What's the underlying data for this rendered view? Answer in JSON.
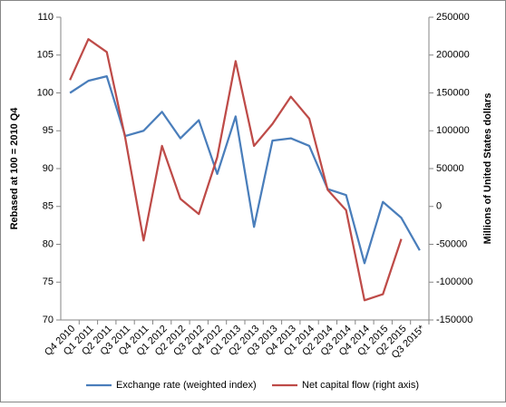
{
  "chart_data": {
    "type": "line",
    "categories": [
      "Q4 2010",
      "Q1 2011",
      "Q2 2011",
      "Q3 2011",
      "Q4 2011",
      "Q1 2012",
      "Q2 2012",
      "Q3 2012",
      "Q4 2012",
      "Q1 2013",
      "Q2 2013",
      "Q3 2013",
      "Q4 2013",
      "Q1 2014",
      "Q2 2014",
      "Q3 2014",
      "Q4 2014",
      "Q1 2015",
      "Q2 2015",
      "Q3 2015*"
    ],
    "series": [
      {
        "name": "Exchange rate (weighted index)",
        "color": "#4a7ebb",
        "axis": "y",
        "values": [
          100,
          101.6,
          102.2,
          94.3,
          95,
          97.5,
          94,
          96.4,
          89.3,
          96.9,
          82.3,
          93.7,
          94,
          93,
          87.3,
          86.5,
          77.5,
          85.6,
          83.5,
          79.2
        ]
      },
      {
        "name": "Net capital flow (right axis)",
        "color": "#be4b48",
        "axis": "y2",
        "values": [
          167000,
          221000,
          204000,
          91000,
          -45000,
          80000,
          10000,
          -10000,
          65000,
          192000,
          80000,
          109000,
          145000,
          116000,
          22000,
          -5000,
          -124000,
          -116000,
          -43000,
          null
        ]
      }
    ],
    "ylabel": "Rebased at 100 = 2010 Q4",
    "y2label": "Millions of United States dollars",
    "ylim": [
      70,
      110
    ],
    "yticks": [
      70,
      75,
      80,
      85,
      90,
      95,
      100,
      105,
      110
    ],
    "y2lim": [
      -150000,
      250000
    ],
    "y2ticks": [
      -150000,
      -100000,
      -50000,
      0,
      50000,
      100000,
      150000,
      200000,
      250000
    ],
    "grid": false,
    "legend": "bottom"
  }
}
